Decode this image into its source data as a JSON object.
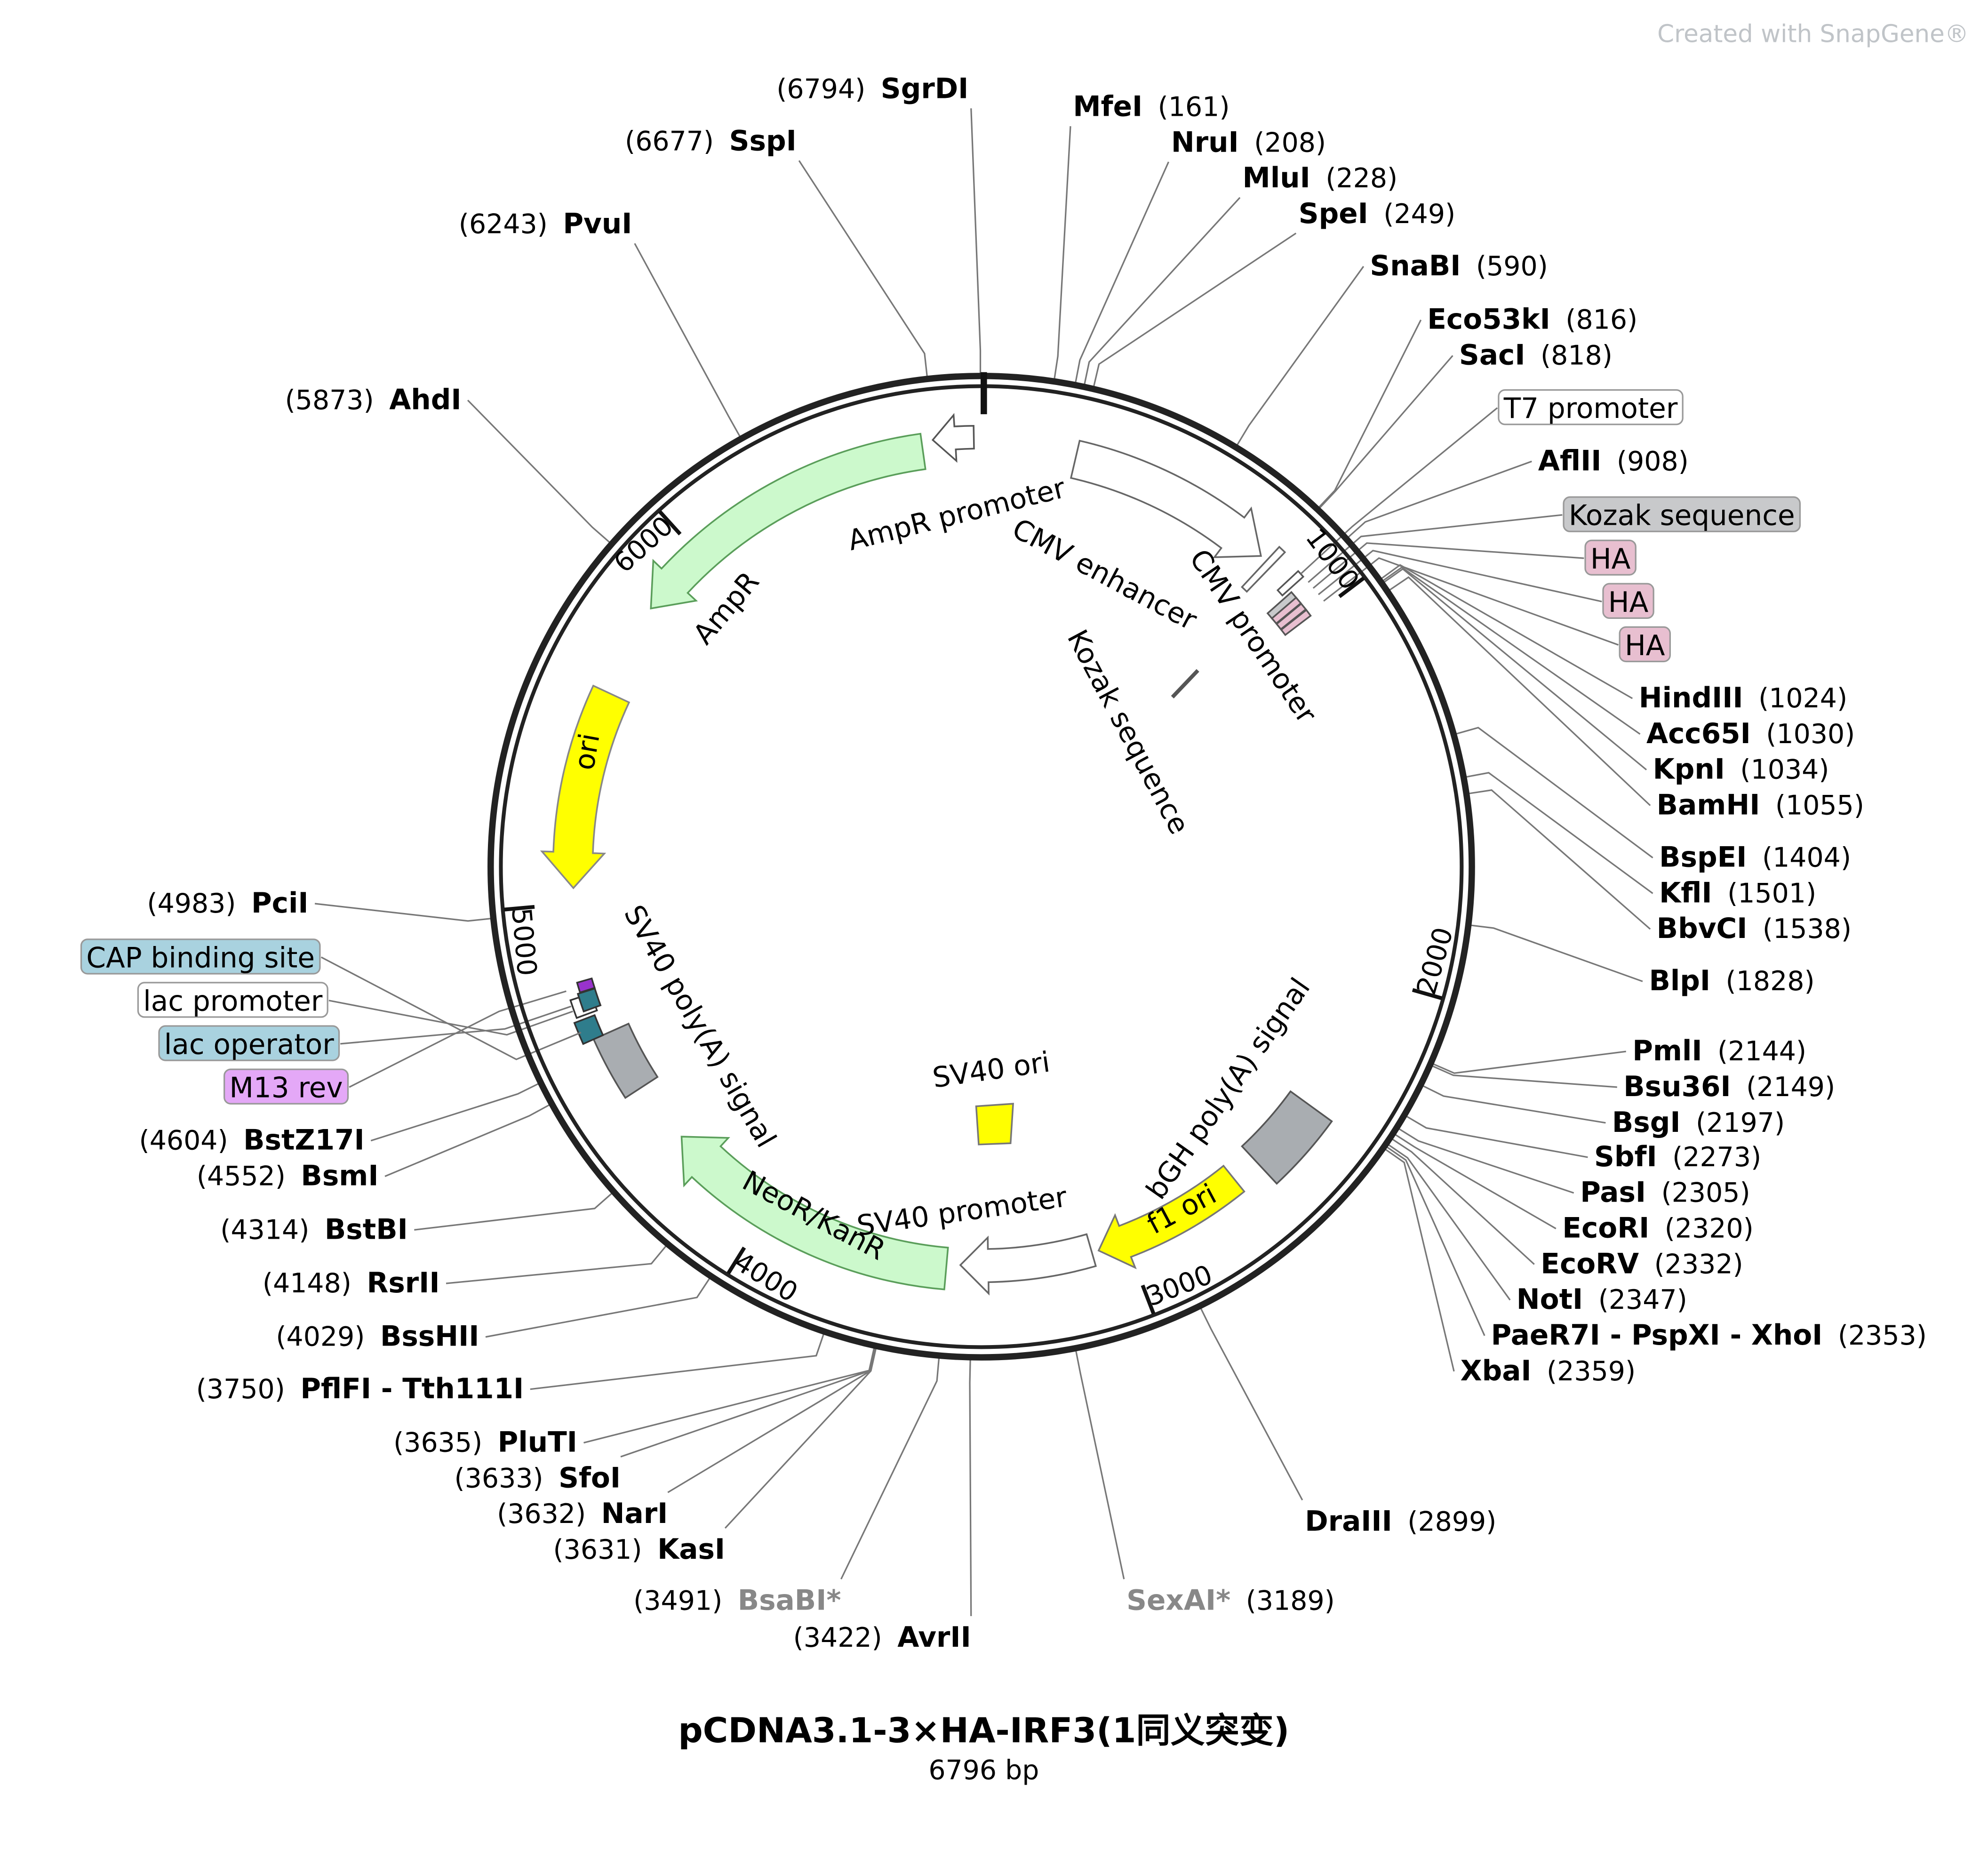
{
  "watermark": "Created with SnapGene®",
  "title": "pCDNA3.1-3×HA-IRF3(1同义突变)",
  "length": "6796 bp",
  "ticks": [
    1000,
    2000,
    3000,
    4000,
    5000,
    6000
  ],
  "enzymes": [
    {
      "name": "SgrDI",
      "site": "(6794)"
    },
    {
      "name": "SspI",
      "site": "(6677)"
    },
    {
      "name": "PvuI",
      "site": "(6243)"
    },
    {
      "name": "AhdI",
      "site": "(5873)"
    },
    {
      "name": "PciI",
      "site": "(4983)"
    },
    {
      "name": "BstZ17I",
      "site": "(4604)"
    },
    {
      "name": "BsmI",
      "site": "(4552)"
    },
    {
      "name": "BstBI",
      "site": "(4314)"
    },
    {
      "name": "RsrII",
      "site": "(4148)"
    },
    {
      "name": "BssHII",
      "site": "(4029)"
    },
    {
      "name": "PflFI - Tth111I",
      "site": "(3750)"
    },
    {
      "name": "PluTI",
      "site": "(3635)"
    },
    {
      "name": "SfoI",
      "site": "(3633)"
    },
    {
      "name": "NarI",
      "site": "(3632)"
    },
    {
      "name": "KasI",
      "site": "(3631)"
    },
    {
      "name": "BsaBI*",
      "site": "(3491)",
      "color": "#888888"
    },
    {
      "name": "AvrII",
      "site": "(3422)"
    },
    {
      "name": "MfeI",
      "site": "(161)"
    },
    {
      "name": "NruI",
      "site": "(208)"
    },
    {
      "name": "MluI",
      "site": "(228)"
    },
    {
      "name": "SpeI",
      "site": "(249)"
    },
    {
      "name": "SnaBI",
      "site": "(590)"
    },
    {
      "name": "Eco53kI",
      "site": "(816)"
    },
    {
      "name": "SacI",
      "site": "(818)"
    },
    {
      "name": "AflII",
      "site": "(908)"
    },
    {
      "name": "HindIII",
      "site": "(1024)"
    },
    {
      "name": "Acc65I",
      "site": "(1030)"
    },
    {
      "name": "KpnI",
      "site": "(1034)"
    },
    {
      "name": "BamHI",
      "site": "(1055)"
    },
    {
      "name": "BspEI",
      "site": "(1404)"
    },
    {
      "name": "KflI",
      "site": "(1501)"
    },
    {
      "name": "BbvCI",
      "site": "(1538)"
    },
    {
      "name": "BlpI",
      "site": "(1828)"
    },
    {
      "name": "PmlI",
      "site": "(2144)"
    },
    {
      "name": "Bsu36I",
      "site": "(2149)"
    },
    {
      "name": "BsgI",
      "site": "(2197)"
    },
    {
      "name": "SbfI",
      "site": "(2273)"
    },
    {
      "name": "PasI",
      "site": "(2305)"
    },
    {
      "name": "EcoRI",
      "site": "(2320)"
    },
    {
      "name": "EcoRV",
      "site": "(2332)"
    },
    {
      "name": "NotI",
      "site": "(2347)"
    },
    {
      "name": "PaeR7I - PspXI - XhoI",
      "site": "(2353)"
    },
    {
      "name": "XbaI",
      "site": "(2359)"
    },
    {
      "name": "DraIII",
      "site": "(2899)"
    },
    {
      "name": "SexAI*",
      "site": "(3189)",
      "color": "#888888"
    }
  ],
  "side_features": [
    {
      "label": "T7 promoter",
      "color": "#ffffff"
    },
    {
      "label": "Kozak sequence",
      "color": "#c8c9cb"
    },
    {
      "label": "HA",
      "color": "#e8bfd0"
    },
    {
      "label": "HA",
      "color": "#e8bfd0"
    },
    {
      "label": "HA",
      "color": "#e8bfd0"
    },
    {
      "label": "CAP binding site",
      "color": "#a9d2df"
    },
    {
      "label": "lac promoter",
      "color": "#ffffff"
    },
    {
      "label": "lac operator",
      "color": "#a9d2df"
    },
    {
      "label": "M13 rev",
      "color": "#e4a8f7"
    }
  ],
  "map_features": [
    {
      "label": "AmpR promoter",
      "color": "#ffffff"
    },
    {
      "label": "AmpR",
      "color": "#ccf9cc"
    },
    {
      "label": "ori",
      "color": "#ffff00"
    },
    {
      "label": "CMV enhancer",
      "color": "#ffffff"
    },
    {
      "label": "CMV promoter",
      "color": "#ffffff"
    },
    {
      "label": "Kozak sequence",
      "color": "#555555"
    },
    {
      "label": "bGH poly(A) signal",
      "color": "#a9adb1"
    },
    {
      "label": "f1 ori",
      "color": "#ffff00"
    },
    {
      "label": "SV40 promoter",
      "color": "#ffffff"
    },
    {
      "label": "NeoR/KanR",
      "color": "#ccf9cc"
    },
    {
      "label": "SV40 poly(A) signal",
      "color": "#a9adb1"
    },
    {
      "label": "SV40 ori",
      "color": "#ffff00"
    }
  ]
}
